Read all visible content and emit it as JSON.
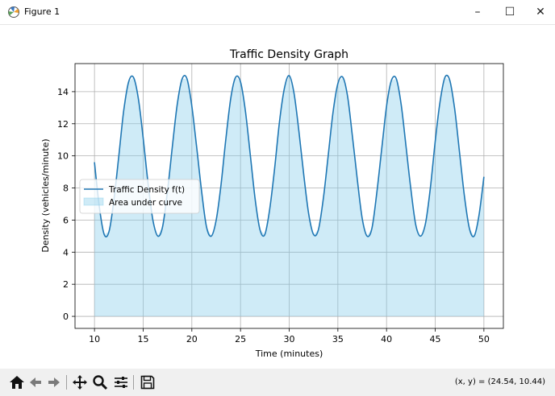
{
  "window": {
    "title": "Figure 1",
    "minimize_label": "–",
    "maximize_label": "☐",
    "close_label": "✕"
  },
  "toolbar": {
    "tools": [
      "home-icon",
      "back-arrow-icon",
      "forward-arrow-icon",
      "pan-icon",
      "zoom-icon",
      "configure-subplots-icon",
      "save-icon"
    ],
    "coords_text": "(x, y) = (24.54, 10.44)"
  },
  "chart_data": {
    "type": "area",
    "title": "Traffic Density Graph",
    "xlabel": "Time (minutes)",
    "ylabel": "Density (vehicles/minute)",
    "xlim": [
      8,
      52
    ],
    "ylim": [
      -0.75,
      15.75
    ],
    "xticks": [
      10,
      15,
      20,
      25,
      30,
      35,
      40,
      45,
      50
    ],
    "yticks": [
      0,
      2,
      4,
      6,
      8,
      10,
      12,
      14
    ],
    "grid": true,
    "legend_placement": "center-left",
    "legend": [
      "Traffic Density f(t)",
      "Area under curve"
    ],
    "series": [
      {
        "name": "Traffic Density f(t)",
        "color": "#1f77b4",
        "x": [
          10,
          10.5,
          11,
          11.5,
          12,
          12.5,
          13,
          13.5,
          14,
          14.5,
          15,
          15.5,
          16,
          16.5,
          17,
          17.5,
          18,
          18.5,
          19,
          19.5,
          20,
          20.5,
          21,
          21.5,
          22,
          22.5,
          23,
          23.5,
          24,
          24.5,
          25,
          25.5,
          26,
          26.5,
          27,
          27.5,
          28,
          28.5,
          29,
          29.5,
          30,
          30.5,
          31,
          31.5,
          32,
          32.5,
          33,
          33.5,
          34,
          34.5,
          35,
          35.5,
          36,
          36.5,
          37,
          37.5,
          38,
          38.5,
          39,
          39.5,
          40,
          40.5,
          41,
          41.5,
          42,
          42.5,
          43,
          43.5,
          44,
          44.5,
          45,
          45.5,
          46,
          46.5,
          47,
          47.5,
          48,
          48.5,
          49,
          49.5,
          50
        ],
        "y": [
          9.6,
          6.8,
          5.1,
          5.3,
          7.3,
          10.0,
          12.8,
          14.6,
          14.9,
          13.6,
          11.1,
          8.3,
          6.0,
          5.0,
          5.6,
          7.8,
          10.6,
          13.2,
          14.8,
          14.8,
          13.1,
          10.5,
          7.8,
          5.6,
          5.0,
          6.0,
          8.2,
          11.1,
          13.6,
          14.9,
          14.6,
          12.8,
          10.1,
          7.3,
          5.4,
          5.1,
          6.7,
          9.2,
          12.1,
          14.2,
          15.0,
          13.9,
          11.5,
          8.8,
          6.4,
          5.1,
          5.4,
          7.3,
          10.0,
          12.7,
          14.5,
          14.9,
          13.7,
          11.2,
          8.5,
          6.1,
          5.0,
          5.5,
          7.7,
          10.4,
          13.1,
          14.7,
          14.8,
          13.2,
          10.6,
          7.9,
          5.7,
          5.0,
          5.8,
          8.0,
          10.9,
          13.4,
          14.9,
          14.7,
          12.9,
          10.2,
          7.5,
          5.5,
          5.0,
          6.3,
          8.7
        ]
      }
    ],
    "fill": {
      "name": "Area under curve",
      "color": "#87ceeb",
      "alpha": 0.4,
      "baseline": 0
    }
  }
}
